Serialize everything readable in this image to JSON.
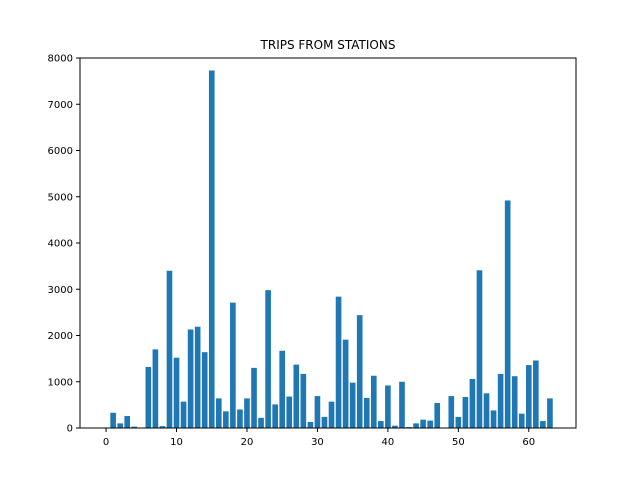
{
  "chart_data": {
    "type": "bar",
    "title": "TRIPS FROM STATIONS",
    "xlabel": "",
    "ylabel": "",
    "xlim": [
      -3.7,
      66.7
    ],
    "ylim": [
      0,
      8000
    ],
    "xticks": [
      0,
      10,
      20,
      30,
      40,
      50,
      60
    ],
    "yticks": [
      0,
      1000,
      2000,
      3000,
      4000,
      5000,
      6000,
      7000,
      8000
    ],
    "grid": false,
    "bar_color": "#1f77b4",
    "x": [
      0,
      1,
      2,
      3,
      4,
      5,
      6,
      7,
      8,
      9,
      10,
      11,
      12,
      13,
      14,
      15,
      16,
      17,
      18,
      19,
      20,
      21,
      22,
      23,
      24,
      25,
      26,
      27,
      28,
      29,
      30,
      31,
      32,
      33,
      34,
      35,
      36,
      37,
      38,
      39,
      40,
      41,
      42,
      43,
      44,
      45,
      46,
      47,
      48,
      49,
      50,
      51,
      52,
      53,
      54,
      55,
      56,
      57,
      58,
      59,
      60,
      61,
      62,
      63
    ],
    "values": [
      0,
      330,
      100,
      260,
      30,
      0,
      1320,
      1700,
      40,
      3400,
      1520,
      570,
      2130,
      2190,
      1640,
      7730,
      640,
      360,
      2710,
      400,
      640,
      1300,
      220,
      2980,
      510,
      1670,
      680,
      1370,
      1170,
      130,
      690,
      240,
      570,
      2840,
      1910,
      980,
      2440,
      650,
      1130,
      150,
      920,
      50,
      1000,
      20,
      100,
      180,
      160,
      540,
      0,
      690,
      240,
      670,
      1060,
      3410,
      750,
      380,
      1170,
      4920,
      1120,
      310,
      1360,
      1460,
      150,
      640
    ]
  }
}
